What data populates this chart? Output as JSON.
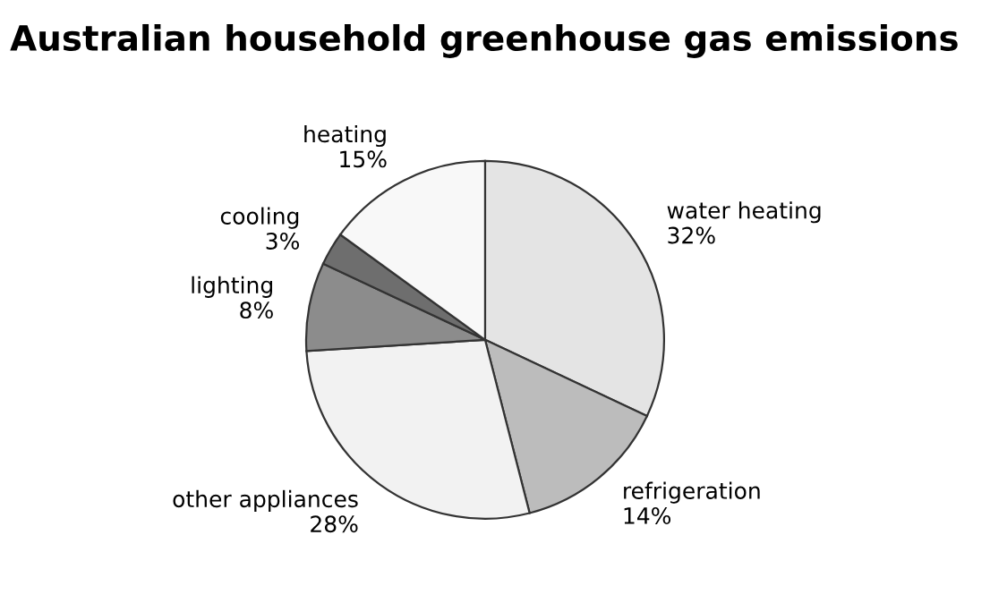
{
  "chart_data": {
    "type": "pie",
    "title": "Australian household greenhouse gas emissions",
    "categories": [
      "water heating",
      "refrigeration",
      "other appliances",
      "lighting",
      "cooling",
      "heating"
    ],
    "values": [
      32,
      14,
      28,
      8,
      3,
      15
    ],
    "value_labels": [
      "32%",
      "14%",
      "28%",
      "8%",
      "3%",
      "15%"
    ],
    "colors": [
      "#e4e4e4",
      "#bcbcbc",
      "#f2f2f2",
      "#8c8c8c",
      "#6e6e6e",
      "#f8f8f8"
    ]
  }
}
